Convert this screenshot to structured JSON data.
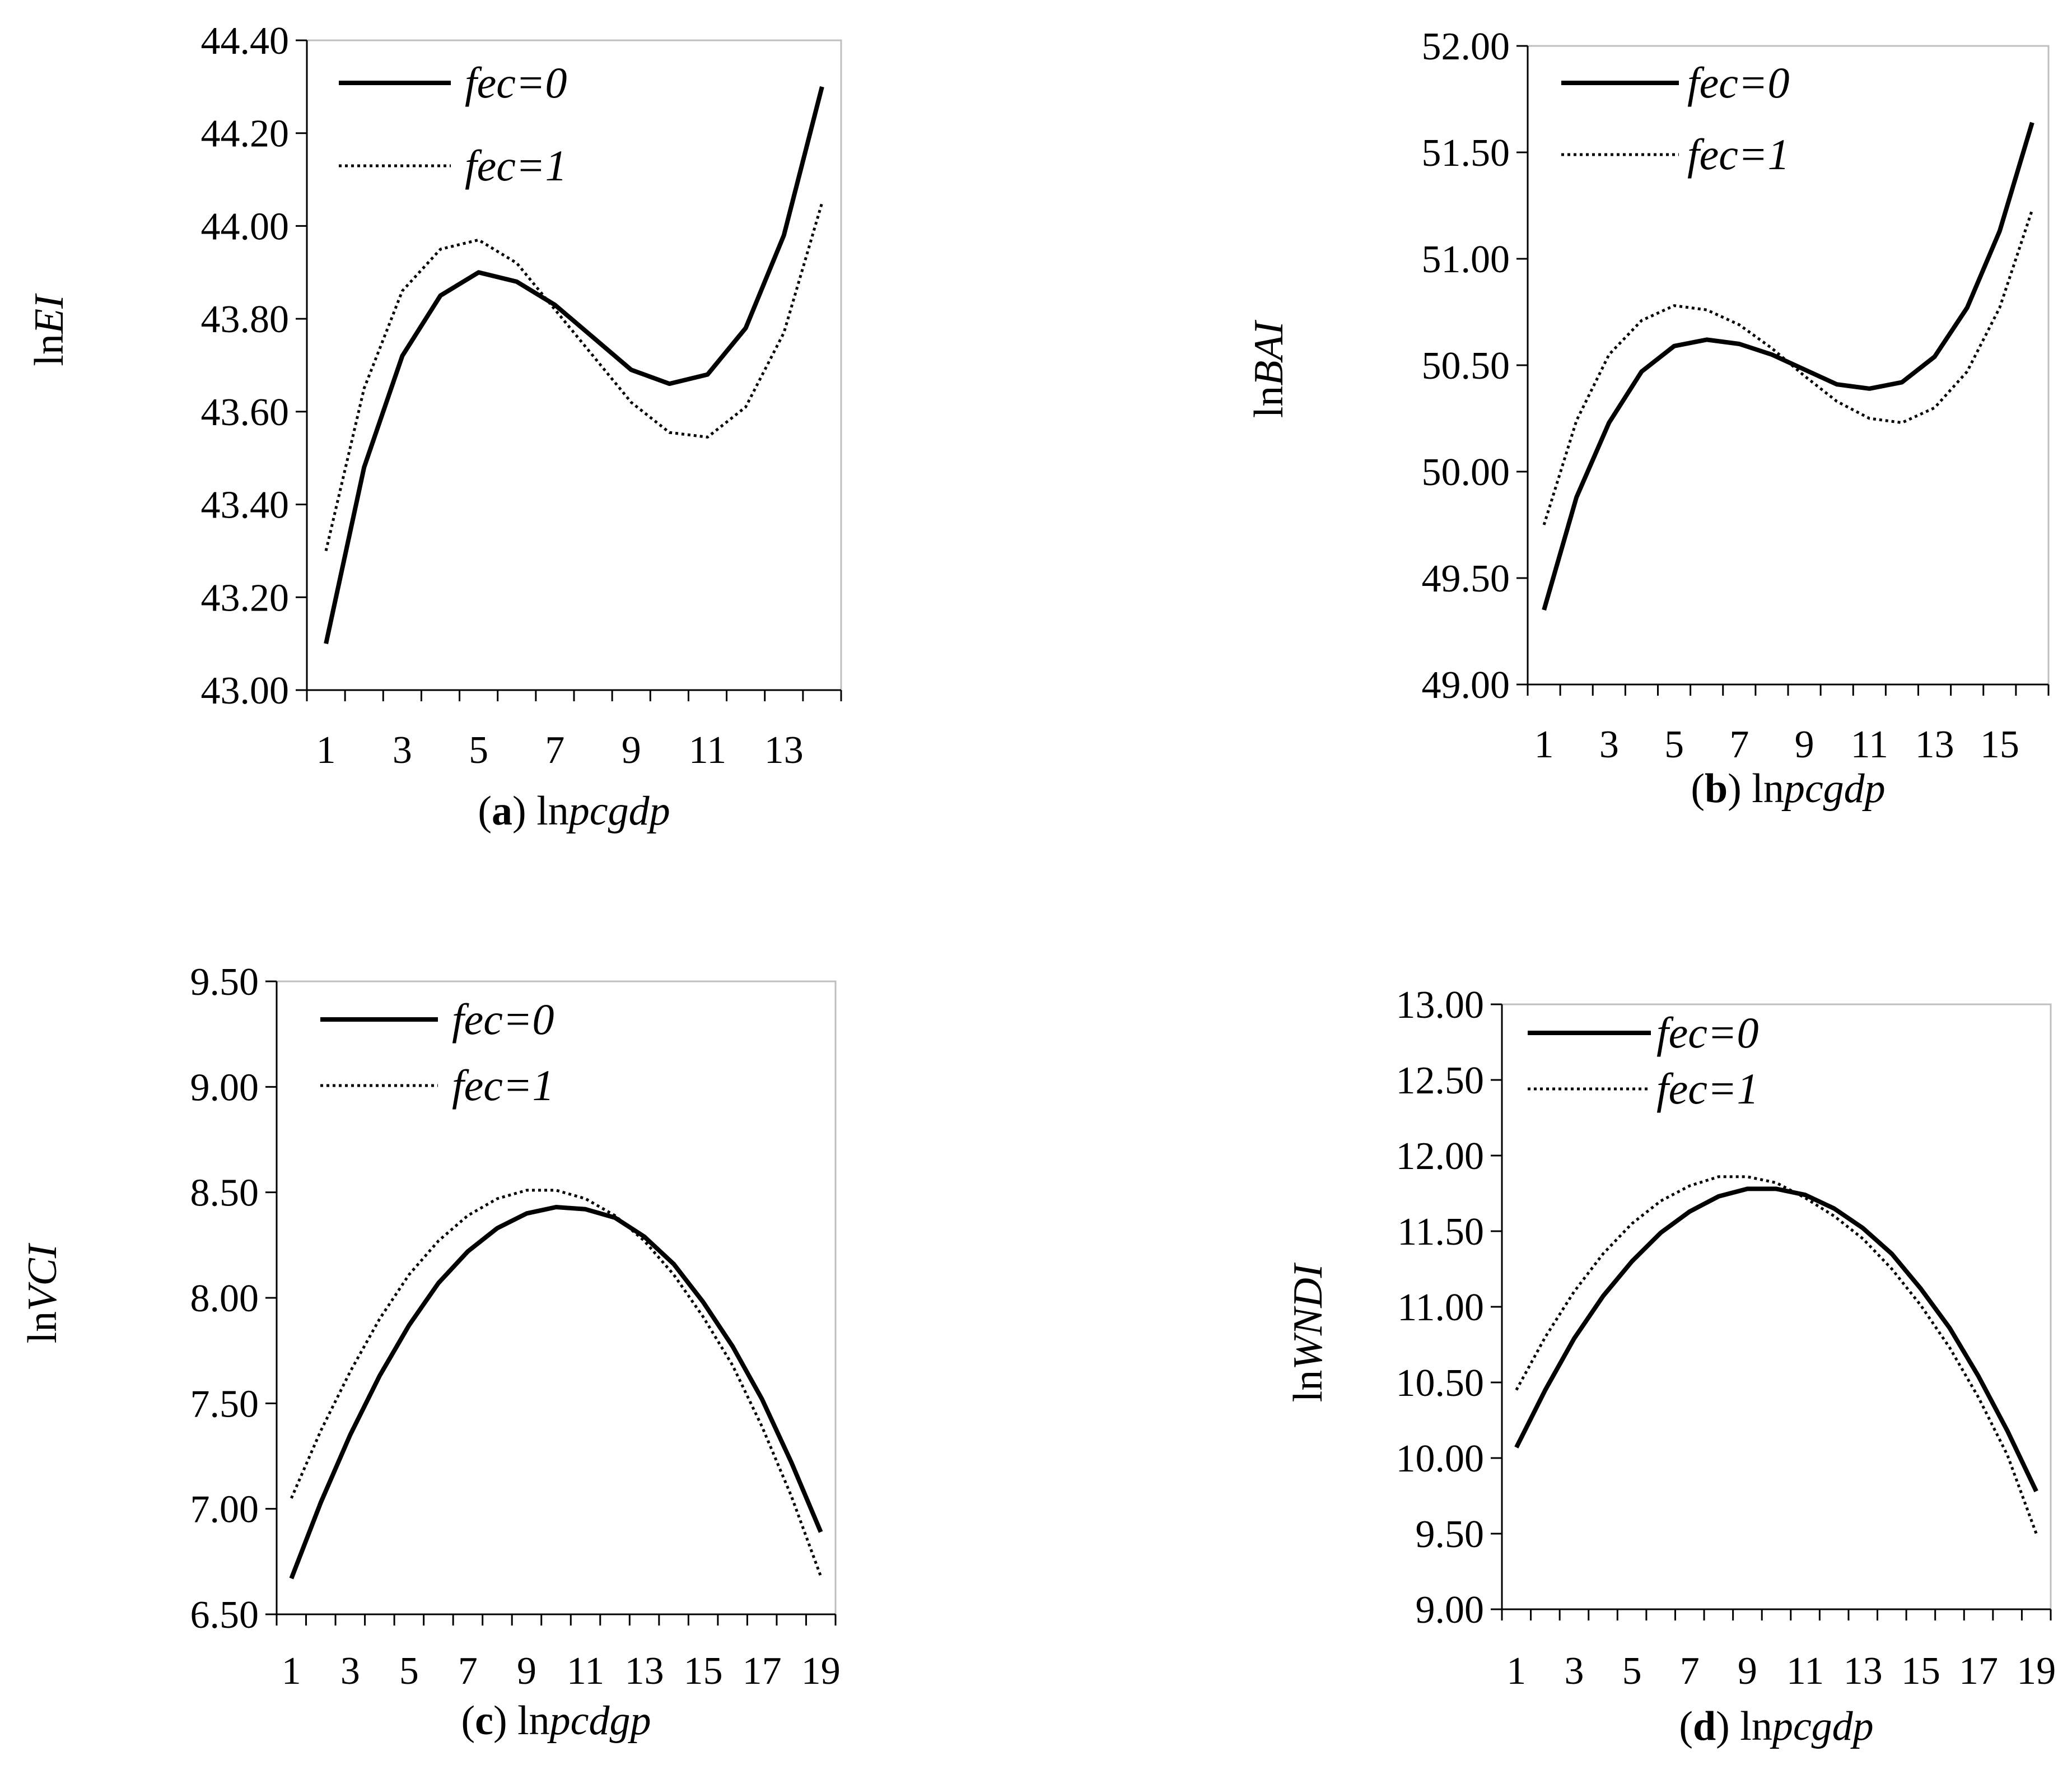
{
  "chart_data": [
    {
      "id": "a",
      "type": "line",
      "panel_letter": "a",
      "xlabel_prefix": "ln",
      "xlabel_var": "pcgdp",
      "ylabel_prefix": "ln",
      "ylabel_var": "EI",
      "ylim": [
        43.0,
        44.4
      ],
      "yticks": [
        "43.00",
        "43.20",
        "43.40",
        "43.60",
        "43.80",
        "44.00",
        "44.20",
        "44.40"
      ],
      "xticks": [
        "1",
        "3",
        "5",
        "7",
        "9",
        "11",
        "13"
      ],
      "x": [
        1,
        2,
        3,
        4,
        5,
        6,
        7,
        8,
        9,
        10,
        11,
        12,
        13,
        14
      ],
      "grid": false,
      "legend_position": "top-left",
      "series": [
        {
          "name": "fec=0",
          "style": "solid",
          "values": [
            43.1,
            43.48,
            43.72,
            43.85,
            43.9,
            43.88,
            43.83,
            43.76,
            43.69,
            43.66,
            43.68,
            43.78,
            43.98,
            44.3
          ]
        },
        {
          "name": "fec=1",
          "style": "dotted",
          "values": [
            43.3,
            43.65,
            43.86,
            43.95,
            43.97,
            43.92,
            43.82,
            43.72,
            43.62,
            43.555,
            43.545,
            43.61,
            43.77,
            44.05
          ]
        }
      ]
    },
    {
      "id": "b",
      "type": "line",
      "panel_letter": "b",
      "xlabel_prefix": "ln",
      "xlabel_var": "pcgdp",
      "ylabel_prefix": "ln",
      "ylabel_var": "BAI",
      "ylim": [
        49.0,
        52.0
      ],
      "yticks": [
        "49.00",
        "49.50",
        "50.00",
        "50.50",
        "51.00",
        "51.50",
        "52.00"
      ],
      "xticks": [
        "1",
        "3",
        "5",
        "7",
        "9",
        "11",
        "13",
        "15"
      ],
      "x": [
        1,
        2,
        3,
        4,
        5,
        6,
        7,
        8,
        9,
        10,
        11,
        12,
        13,
        14,
        15,
        16
      ],
      "grid": false,
      "legend_position": "top-left",
      "series": [
        {
          "name": "fec=0",
          "style": "solid",
          "values": [
            49.35,
            49.88,
            50.23,
            50.47,
            50.59,
            50.62,
            50.6,
            50.55,
            50.48,
            50.41,
            50.39,
            50.42,
            50.54,
            50.77,
            51.13,
            51.64
          ]
        },
        {
          "name": "fec=1",
          "style": "dotted",
          "values": [
            49.75,
            50.24,
            50.55,
            50.71,
            50.78,
            50.76,
            50.69,
            50.58,
            50.45,
            50.33,
            50.25,
            50.23,
            50.3,
            50.47,
            50.77,
            51.23
          ]
        }
      ]
    },
    {
      "id": "c",
      "type": "line",
      "panel_letter": "c",
      "xlabel_prefix": "ln",
      "xlabel_var": "pcdgp",
      "ylabel_prefix": "ln",
      "ylabel_var": "VCI",
      "ylim": [
        6.5,
        9.5
      ],
      "yticks": [
        "6.50",
        "7.00",
        "7.50",
        "8.00",
        "8.50",
        "9.00",
        "9.50"
      ],
      "xticks": [
        "1",
        "3",
        "5",
        "7",
        "9",
        "11",
        "13",
        "15",
        "17",
        "19"
      ],
      "x": [
        1,
        2,
        3,
        4,
        5,
        6,
        7,
        8,
        9,
        10,
        11,
        12,
        13,
        14,
        15,
        16,
        17,
        18,
        19
      ],
      "grid": false,
      "legend_position": "top-left",
      "series": [
        {
          "name": "fec=0",
          "style": "solid",
          "values": [
            6.67,
            7.03,
            7.35,
            7.63,
            7.87,
            8.07,
            8.22,
            8.33,
            8.4,
            8.43,
            8.42,
            8.38,
            8.29,
            8.16,
            7.98,
            7.77,
            7.52,
            7.22,
            6.89
          ]
        },
        {
          "name": "fec=1",
          "style": "dotted",
          "values": [
            7.05,
            7.37,
            7.65,
            7.9,
            8.11,
            8.27,
            8.39,
            8.47,
            8.51,
            8.51,
            8.47,
            8.39,
            8.27,
            8.11,
            7.91,
            7.68,
            7.39,
            7.06,
            6.68
          ]
        }
      ]
    },
    {
      "id": "d",
      "type": "line",
      "panel_letter": "d",
      "xlabel_prefix": "ln",
      "xlabel_var": "pcgdp",
      "ylabel_prefix": "ln",
      "ylabel_var": "WNDI",
      "ylim": [
        9.0,
        13.0
      ],
      "yticks": [
        "9.00",
        "9.50",
        "10.00",
        "10.50",
        "11.00",
        "11.50",
        "12.00",
        "12.50",
        "13.00"
      ],
      "xticks": [
        "1",
        "3",
        "5",
        "7",
        "9",
        "11",
        "13",
        "15",
        "17",
        "19"
      ],
      "x": [
        1,
        2,
        3,
        4,
        5,
        6,
        7,
        8,
        9,
        10,
        11,
        12,
        13,
        14,
        15,
        16,
        17,
        18,
        19
      ],
      "grid": false,
      "legend_position": "top-left",
      "series": [
        {
          "name": "fec=0",
          "style": "solid",
          "values": [
            10.07,
            10.45,
            10.79,
            11.07,
            11.3,
            11.49,
            11.63,
            11.73,
            11.78,
            11.78,
            11.74,
            11.65,
            11.52,
            11.35,
            11.12,
            10.86,
            10.54,
            10.18,
            9.78
          ]
        },
        {
          "name": "fec=1",
          "style": "dotted",
          "values": [
            10.45,
            10.8,
            11.1,
            11.35,
            11.55,
            11.7,
            11.8,
            11.86,
            11.86,
            11.82,
            11.72,
            11.6,
            11.45,
            11.25,
            11.01,
            10.73,
            10.4,
            10.02,
            9.5
          ]
        }
      ]
    }
  ]
}
